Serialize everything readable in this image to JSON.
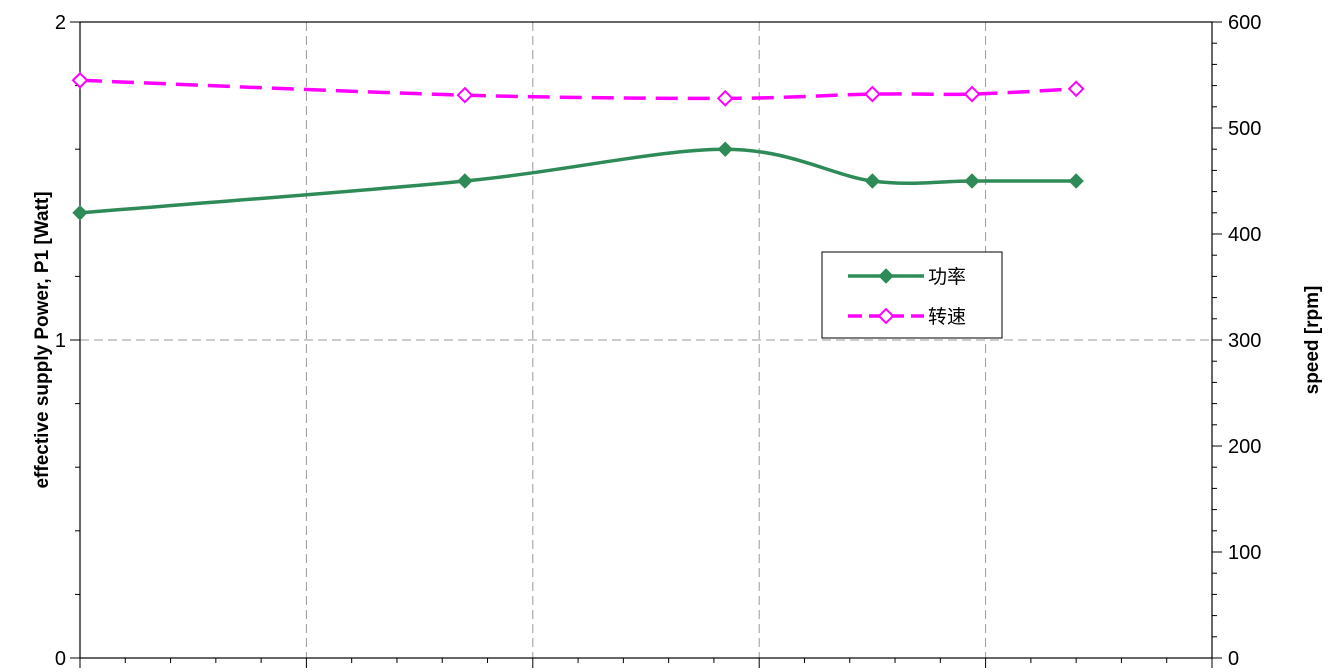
{
  "chart_data": {
    "type": "line",
    "title": "",
    "xlabel": "",
    "ylabel_left": "effective supply Power, P1 [Watt]",
    "ylabel_right": "speed [rpm]",
    "ylim_left": [
      0,
      2
    ],
    "ylim_right": [
      0,
      600
    ],
    "xlim": [
      0,
      5
    ],
    "left_ticks": [
      "0",
      "1",
      "2"
    ],
    "right_ticks": [
      "0",
      "100",
      "200",
      "300",
      "400",
      "500",
      "600"
    ],
    "grid": true,
    "legend_position": "center-right",
    "x": [
      0.0,
      1.7,
      2.85,
      3.5,
      3.94,
      4.4
    ],
    "series": [
      {
        "name": "功率",
        "axis": "left",
        "color": "#2E8B57",
        "style": "solid",
        "marker": "filled-diamond",
        "values": [
          1.4,
          1.5,
          1.6,
          1.5,
          1.5,
          1.5
        ]
      },
      {
        "name": "转速",
        "axis": "right",
        "color": "#FF00FF",
        "style": "dashed",
        "marker": "open-diamond",
        "values": [
          545,
          531,
          528,
          532,
          532,
          537
        ]
      }
    ]
  }
}
